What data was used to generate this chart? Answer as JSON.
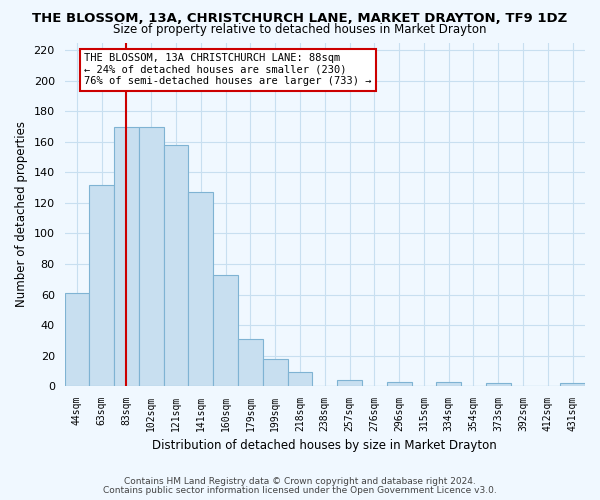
{
  "title": "THE BLOSSOM, 13A, CHRISTCHURCH LANE, MARKET DRAYTON, TF9 1DZ",
  "subtitle": "Size of property relative to detached houses in Market Drayton",
  "xlabel": "Distribution of detached houses by size in Market Drayton",
  "ylabel": "Number of detached properties",
  "bar_labels": [
    "44sqm",
    "63sqm",
    "83sqm",
    "102sqm",
    "121sqm",
    "141sqm",
    "160sqm",
    "179sqm",
    "199sqm",
    "218sqm",
    "238sqm",
    "257sqm",
    "276sqm",
    "296sqm",
    "315sqm",
    "334sqm",
    "354sqm",
    "373sqm",
    "392sqm",
    "412sqm",
    "431sqm"
  ],
  "bar_values": [
    61,
    132,
    170,
    170,
    158,
    127,
    73,
    31,
    18,
    9,
    0,
    4,
    0,
    3,
    0,
    3,
    0,
    2,
    0,
    0,
    2
  ],
  "bar_color": "#c8dff0",
  "bar_edge_color": "#7fb3d3",
  "grid_color": "#c8dff0",
  "background_color": "#f0f8ff",
  "vline_x_index": 2,
  "vline_color": "#cc0000",
  "annotation_text": "THE BLOSSOM, 13A CHRISTCHURCH LANE: 88sqm\n← 24% of detached houses are smaller (230)\n76% of semi-detached houses are larger (733) →",
  "annotation_box_color": "#ffffff",
  "annotation_box_edge": "#cc0000",
  "ylim": [
    0,
    225
  ],
  "yticks": [
    0,
    20,
    40,
    60,
    80,
    100,
    120,
    140,
    160,
    180,
    200,
    220
  ],
  "footer1": "Contains HM Land Registry data © Crown copyright and database right 2024.",
  "footer2": "Contains public sector information licensed under the Open Government Licence v3.0."
}
